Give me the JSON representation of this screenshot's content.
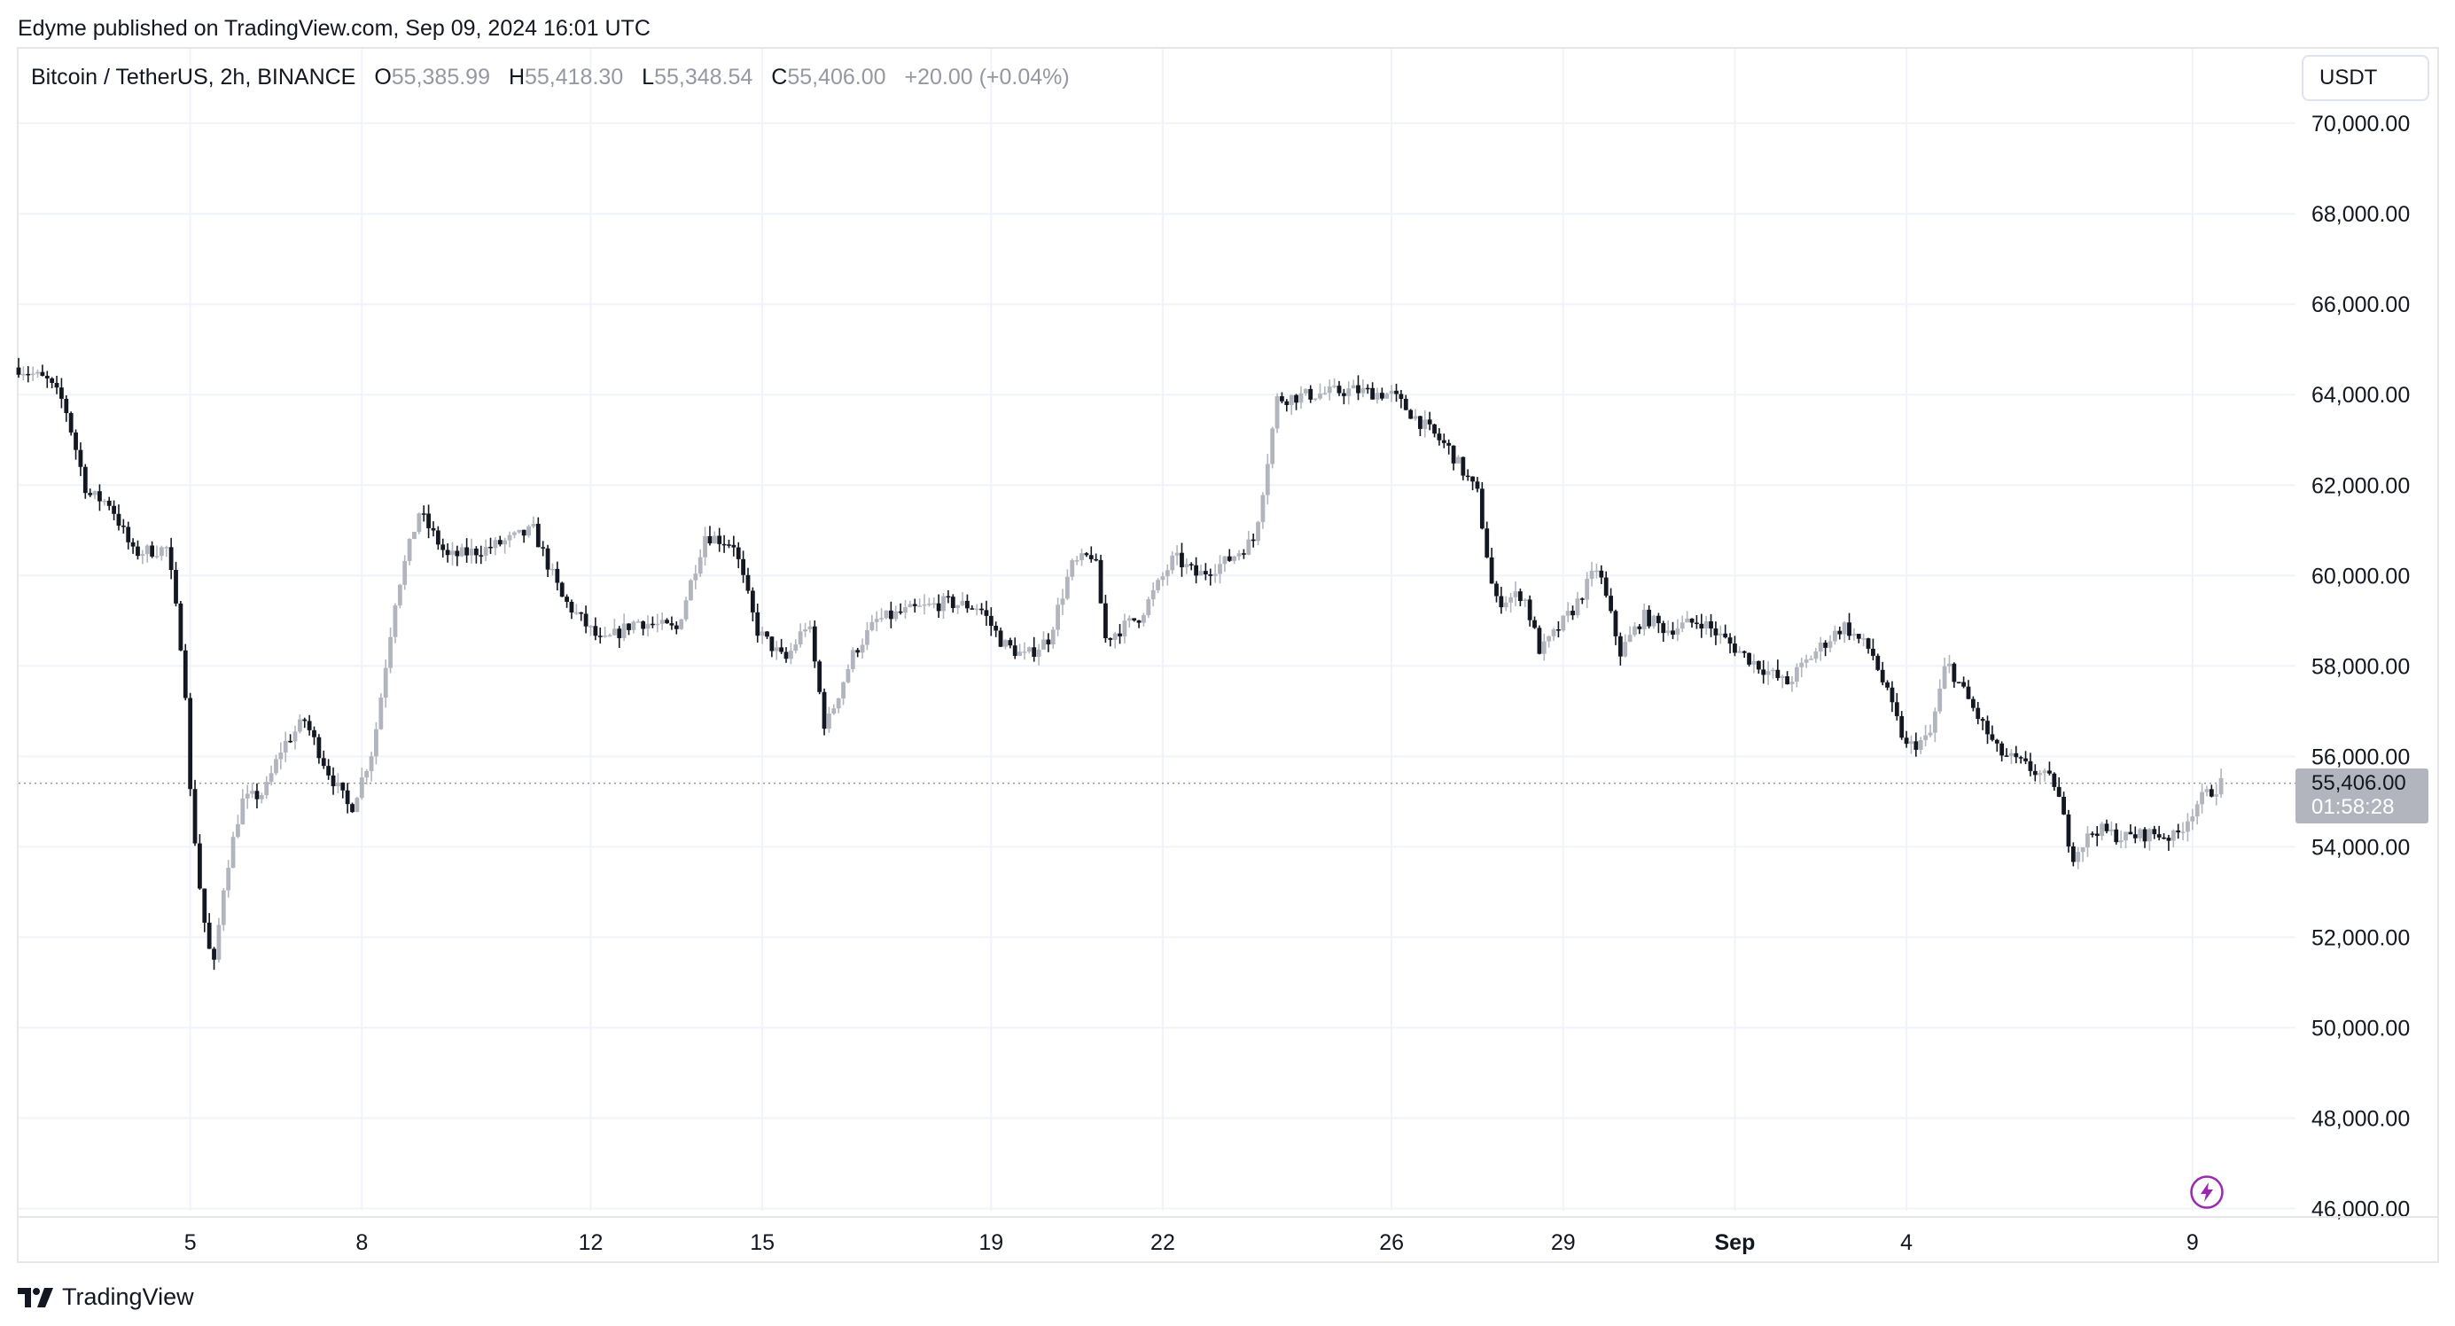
{
  "header": {
    "publisher_line": "Edyme published on TradingView.com, Sep 09, 2024 16:01 UTC"
  },
  "legend": {
    "symbol": "Bitcoin / TetherUS, 2h, BINANCE",
    "open_key": "O",
    "open": "55,385.99",
    "high_key": "H",
    "high": "55,418.30",
    "low_key": "L",
    "low": "55,348.54",
    "close_key": "C",
    "close": "55,406.00",
    "change": "+20.00 (+0.04%)"
  },
  "currency_button": "USDT",
  "last_price": {
    "price": "55,406.00",
    "countdown": "01:58:28"
  },
  "branding": {
    "logo_text": "TradingView",
    "logo_icon": "tradingview-logo-icon"
  },
  "icons": {
    "lightning": "lightning-icon"
  },
  "colors": {
    "up": "#b2b5be",
    "down": "#131722",
    "grid": "#f0f3fa",
    "axis_text": "#131722"
  },
  "chart_data": {
    "type": "candlestick",
    "interval": "2h",
    "x_axis": {
      "ticks": [
        {
          "day": 5,
          "label": "5"
        },
        {
          "day": 8,
          "label": "8"
        },
        {
          "day": 12,
          "label": "12"
        },
        {
          "day": 15,
          "label": "15"
        },
        {
          "day": 19,
          "label": "19"
        },
        {
          "day": 22,
          "label": "22"
        },
        {
          "day": 26,
          "label": "26"
        },
        {
          "day": 29,
          "label": "29"
        },
        {
          "day": 32,
          "label": "Sep"
        },
        {
          "day": 35,
          "label": "4"
        },
        {
          "day": 40,
          "label": "9"
        }
      ],
      "range": [
        2.0,
        41.8
      ]
    },
    "y_axis": {
      "ticks": [
        "70,000.00",
        "68,000.00",
        "66,000.00",
        "64,000.00",
        "62,000.00",
        "60,000.00",
        "58,000.00",
        "56,000.00",
        "54,000.00",
        "52,000.00",
        "50,000.00",
        "48,000.00",
        "46,000.00"
      ],
      "range": [
        45950,
        71650
      ],
      "last_price": 55406
    },
    "anchors": [
      {
        "day": 2.0,
        "close": 64600
      },
      {
        "day": 2.5,
        "close": 64300
      },
      {
        "day": 2.8,
        "close": 63800
      },
      {
        "day": 3.2,
        "close": 61800
      },
      {
        "day": 3.6,
        "close": 61600
      },
      {
        "day": 4.0,
        "close": 60500
      },
      {
        "day": 4.6,
        "close": 60600
      },
      {
        "day": 4.9,
        "close": 57900
      },
      {
        "day": 5.0,
        "close": 55200
      },
      {
        "day": 5.2,
        "close": 52700
      },
      {
        "day": 5.4,
        "close": 51200
      },
      {
        "day": 5.6,
        "close": 53300
      },
      {
        "day": 5.9,
        "close": 55000
      },
      {
        "day": 6.3,
        "close": 55200
      },
      {
        "day": 6.6,
        "close": 56200
      },
      {
        "day": 7.0,
        "close": 56800
      },
      {
        "day": 7.4,
        "close": 55700
      },
      {
        "day": 7.8,
        "close": 54800
      },
      {
        "day": 8.2,
        "close": 56200
      },
      {
        "day": 8.6,
        "close": 59600
      },
      {
        "day": 9.0,
        "close": 61400
      },
      {
        "day": 9.5,
        "close": 60400
      },
      {
        "day": 10.2,
        "close": 60600
      },
      {
        "day": 11.0,
        "close": 61000
      },
      {
        "day": 11.5,
        "close": 59500
      },
      {
        "day": 12.2,
        "close": 58500
      },
      {
        "day": 12.8,
        "close": 59000
      },
      {
        "day": 13.5,
        "close": 58800
      },
      {
        "day": 14.0,
        "close": 60900
      },
      {
        "day": 14.5,
        "close": 60700
      },
      {
        "day": 14.9,
        "close": 58800
      },
      {
        "day": 15.4,
        "close": 58100
      },
      {
        "day": 15.8,
        "close": 59000
      },
      {
        "day": 16.1,
        "close": 56600
      },
      {
        "day": 16.6,
        "close": 58300
      },
      {
        "day": 17.0,
        "close": 59000
      },
      {
        "day": 17.5,
        "close": 59200
      },
      {
        "day": 18.2,
        "close": 59400
      },
      {
        "day": 18.8,
        "close": 59300
      },
      {
        "day": 19.2,
        "close": 58500
      },
      {
        "day": 19.6,
        "close": 58200
      },
      {
        "day": 20.0,
        "close": 58600
      },
      {
        "day": 20.4,
        "close": 60200
      },
      {
        "day": 20.8,
        "close": 60500
      },
      {
        "day": 21.0,
        "close": 58600
      },
      {
        "day": 21.6,
        "close": 59100
      },
      {
        "day": 22.2,
        "close": 60400
      },
      {
        "day": 22.6,
        "close": 60000
      },
      {
        "day": 23.1,
        "close": 60300
      },
      {
        "day": 23.6,
        "close": 60800
      },
      {
        "day": 23.8,
        "close": 62300
      },
      {
        "day": 24.0,
        "close": 63900
      },
      {
        "day": 24.6,
        "close": 64000
      },
      {
        "day": 25.3,
        "close": 64100
      },
      {
        "day": 26.0,
        "close": 64000
      },
      {
        "day": 26.5,
        "close": 63400
      },
      {
        "day": 27.0,
        "close": 62800
      },
      {
        "day": 27.5,
        "close": 61800
      },
      {
        "day": 27.8,
        "close": 59400
      },
      {
        "day": 28.3,
        "close": 59600
      },
      {
        "day": 28.6,
        "close": 58300
      },
      {
        "day": 29.2,
        "close": 59300
      },
      {
        "day": 29.6,
        "close": 60200
      },
      {
        "day": 30.0,
        "close": 58300
      },
      {
        "day": 30.4,
        "close": 59100
      },
      {
        "day": 30.8,
        "close": 58800
      },
      {
        "day": 31.4,
        "close": 59000
      },
      {
        "day": 32.2,
        "close": 58200
      },
      {
        "day": 32.9,
        "close": 57600
      },
      {
        "day": 33.4,
        "close": 58300
      },
      {
        "day": 33.9,
        "close": 58900
      },
      {
        "day": 34.4,
        "close": 58300
      },
      {
        "day": 35.0,
        "close": 56200
      },
      {
        "day": 35.4,
        "close": 56400
      },
      {
        "day": 35.7,
        "close": 58100
      },
      {
        "day": 36.1,
        "close": 57200
      },
      {
        "day": 36.6,
        "close": 56100
      },
      {
        "day": 37.2,
        "close": 55700
      },
      {
        "day": 37.6,
        "close": 55400
      },
      {
        "day": 37.9,
        "close": 53800
      },
      {
        "day": 38.3,
        "close": 54400
      },
      {
        "day": 38.8,
        "close": 54200
      },
      {
        "day": 39.3,
        "close": 54300
      },
      {
        "day": 39.7,
        "close": 54200
      },
      {
        "day": 40.1,
        "close": 55000
      },
      {
        "day": 40.5,
        "close": 55400
      }
    ]
  }
}
